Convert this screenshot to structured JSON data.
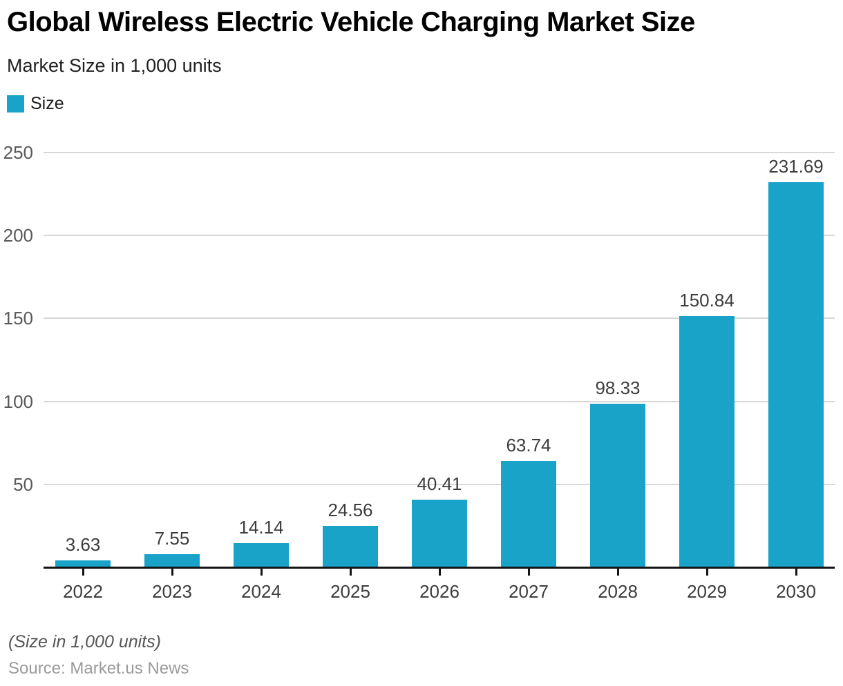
{
  "header": {
    "title": "Global Wireless Electric Vehicle Charging Market Size",
    "subtitle": "Market Size in 1,000 units"
  },
  "legend": {
    "label": "Size",
    "swatch_color": "#1aa3c9"
  },
  "chart_data": {
    "type": "bar",
    "title": "Global Wireless Electric Vehicle Charging Market Size",
    "subtitle": "Market Size in 1,000 units",
    "categories": [
      "2022",
      "2023",
      "2024",
      "2025",
      "2026",
      "2027",
      "2028",
      "2029",
      "2030"
    ],
    "series": [
      {
        "name": "Size",
        "values": [
          3.63,
          7.55,
          14.14,
          24.56,
          40.41,
          63.74,
          98.33,
          150.84,
          231.69
        ]
      }
    ],
    "value_labels": [
      "3.63",
      "7.55",
      "14.14",
      "24.56",
      "40.41",
      "63.74",
      "98.33",
      "150.84",
      "231.69"
    ],
    "xlabel": "",
    "ylabel": "",
    "ylim": [
      0,
      250
    ],
    "yticks": [
      50,
      100,
      150,
      200,
      250
    ],
    "grid": "horizontal",
    "legend_position": "top-left",
    "bar_color": "#1aa3c9"
  },
  "colors": {
    "bar": "#1aa3c9",
    "gridline": "#d7d7d7",
    "axis_line": "#141414",
    "y_label": "#58595b",
    "x_label": "#3d3d3d",
    "value_label": "#3d3d3d"
  },
  "footer": {
    "note": "(Size in 1,000 units)",
    "source": "Source: Market.us News"
  }
}
